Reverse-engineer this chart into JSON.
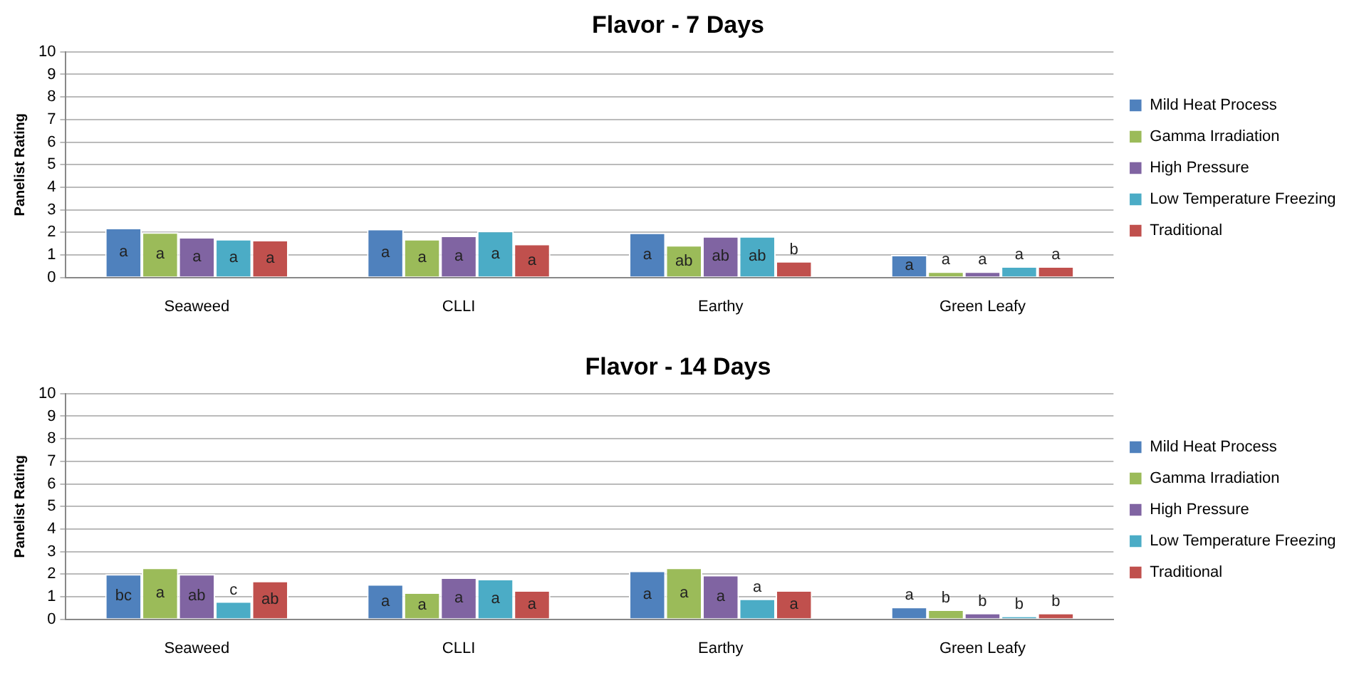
{
  "chart_data": [
    {
      "type": "bar",
      "title": "Flavor - 7 Days",
      "ylabel": "Panelist Rating",
      "categories": [
        "Seaweed",
        "CLLI",
        "Earthy",
        "Green Leafy"
      ],
      "ylim": [
        0,
        10
      ],
      "yticks": [
        0,
        1,
        2,
        3,
        4,
        5,
        6,
        7,
        8,
        9,
        10
      ],
      "grid": "y",
      "legend": "right",
      "series": [
        {
          "name": "Mild Heat Process",
          "color": "#4f81bd",
          "values": [
            2.2,
            2.15,
            1.98,
            1.0
          ],
          "value_labels": [
            "a",
            "a",
            "a",
            "a"
          ]
        },
        {
          "name": "Gamma Irradiation",
          "color": "#9bbb59",
          "values": [
            2.0,
            1.7,
            1.43,
            0.26
          ],
          "value_labels": [
            "a",
            "a",
            "ab",
            "a"
          ]
        },
        {
          "name": "High Pressure",
          "color": "#8064a2",
          "values": [
            1.79,
            1.85,
            1.83,
            0.26
          ],
          "value_labels": [
            "a",
            "a",
            "ab",
            "a"
          ]
        },
        {
          "name": "Low Temperature Freezing",
          "color": "#4bacc6",
          "values": [
            1.7,
            2.06,
            1.83,
            0.49
          ],
          "value_labels": [
            "a",
            "a",
            "ab",
            "a"
          ]
        },
        {
          "name": "Traditional",
          "color": "#c0504d",
          "values": [
            1.66,
            1.49,
            0.72,
            0.49
          ],
          "value_labels": [
            "a",
            "a",
            "b",
            "a"
          ]
        }
      ]
    },
    {
      "type": "bar",
      "title": "Flavor - 14 Days",
      "ylabel": "Panelist Rating",
      "categories": [
        "Seaweed",
        "CLLI",
        "Earthy",
        "Green Leafy"
      ],
      "ylim": [
        0,
        10
      ],
      "yticks": [
        0,
        1,
        2,
        3,
        4,
        5,
        6,
        7,
        8,
        9,
        10
      ],
      "grid": "y",
      "legend": "right",
      "series": [
        {
          "name": "Mild Heat Process",
          "color": "#4f81bd",
          "values": [
            2.0,
            1.55,
            2.15,
            0.55
          ],
          "value_labels": [
            "bc",
            "a",
            "a",
            "a"
          ]
        },
        {
          "name": "Gamma Irradiation",
          "color": "#9bbb59",
          "values": [
            2.28,
            1.19,
            2.28,
            0.43
          ],
          "value_labels": [
            "a",
            "a",
            "a",
            "b"
          ]
        },
        {
          "name": "High Pressure",
          "color": "#8064a2",
          "values": [
            2.0,
            1.85,
            1.96,
            0.28
          ],
          "value_labels": [
            "ab",
            "a",
            "a",
            "b"
          ]
        },
        {
          "name": "Low Temperature Freezing",
          "color": "#4bacc6",
          "values": [
            0.79,
            1.79,
            0.91,
            0.15
          ],
          "value_labels": [
            "c",
            "a",
            "a",
            "b"
          ]
        },
        {
          "name": "Traditional",
          "color": "#c0504d",
          "values": [
            1.7,
            1.28,
            1.28,
            0.28
          ],
          "value_labels": [
            "ab",
            "a",
            "a",
            "b"
          ]
        }
      ]
    }
  ]
}
